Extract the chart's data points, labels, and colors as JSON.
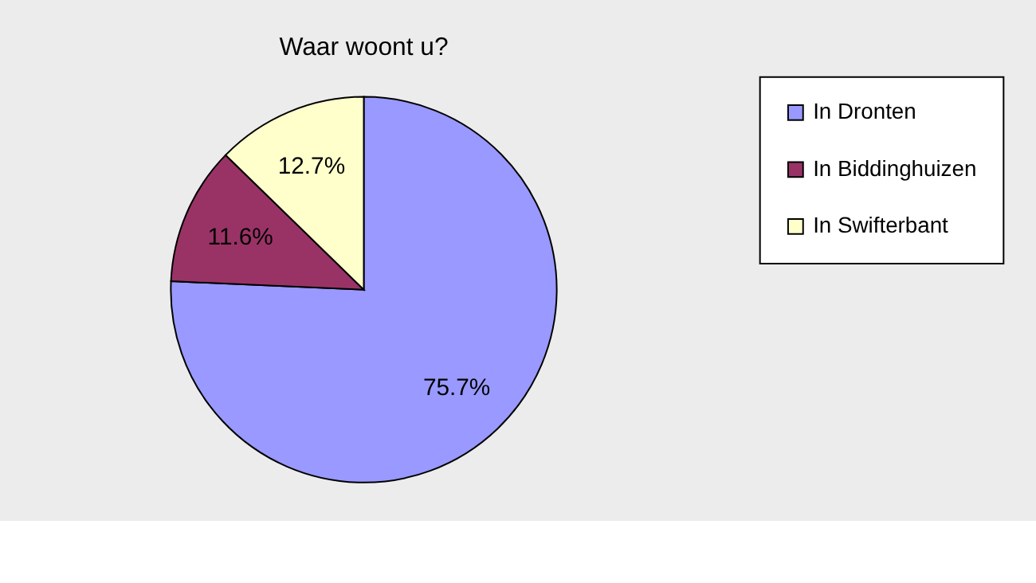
{
  "chart_data": {
    "type": "pie",
    "title": "Waar woont u?",
    "categories": [
      "In Dronten",
      "In Biddinghuizen",
      "In Swifterbant"
    ],
    "values": [
      75.7,
      11.6,
      12.7
    ],
    "colors": [
      "#9999ff",
      "#993366",
      "#ffffcc"
    ],
    "value_labels": [
      "75.7%",
      "11.6%",
      "12.7%"
    ],
    "legend": "right"
  }
}
